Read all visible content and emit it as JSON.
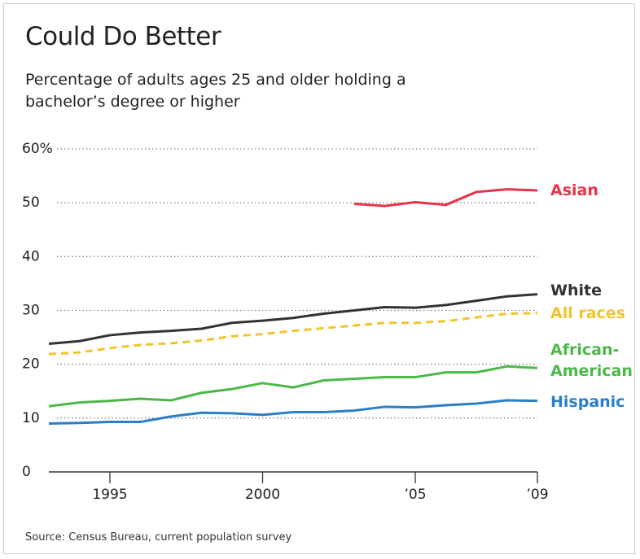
{
  "chart_data": {
    "type": "line",
    "title": "Could Do Better",
    "subtitle": "Percentage of adults ages 25 and older holding a bachelor’s degree or higher",
    "source": "Source: Census Bureau, current population survey",
    "x": [
      1993,
      1994,
      1995,
      1996,
      1997,
      1998,
      1999,
      2000,
      2001,
      2002,
      2003,
      2004,
      2005,
      2006,
      2007,
      2008,
      2009
    ],
    "xlim": [
      1993,
      2009
    ],
    "xticks": [
      1995,
      2000,
      {
        "value": 2005,
        "label": "’05"
      },
      {
        "value": 2009,
        "label": "’09"
      }
    ],
    "ylim": [
      0,
      60
    ],
    "yticks": [
      0,
      10,
      20,
      30,
      40,
      50,
      {
        "value": 60,
        "label": "60%"
      }
    ],
    "grid": true,
    "series": [
      {
        "name": "Asian",
        "color": "#e8334a",
        "style": "solid",
        "values": [
          null,
          null,
          null,
          null,
          null,
          null,
          null,
          null,
          null,
          null,
          49.8,
          49.4,
          50.1,
          49.6,
          52.0,
          52.5,
          52.3
        ]
      },
      {
        "name": "White",
        "color": "#333333",
        "style": "solid",
        "values": [
          23.8,
          24.3,
          25.4,
          25.9,
          26.2,
          26.6,
          27.7,
          28.1,
          28.6,
          29.4,
          30.0,
          30.6,
          30.5,
          31.0,
          31.8,
          32.6,
          33.0
        ]
      },
      {
        "name": "All races",
        "color": "#f2c42c",
        "style": "dashed",
        "values": [
          21.9,
          22.2,
          23.0,
          23.6,
          23.9,
          24.4,
          25.2,
          25.6,
          26.2,
          26.7,
          27.2,
          27.7,
          27.7,
          28.0,
          28.7,
          29.4,
          29.5
        ]
      },
      {
        "name": "African-American",
        "color": "#4cb849",
        "style": "solid",
        "values": [
          12.2,
          12.9,
          13.2,
          13.6,
          13.3,
          14.7,
          15.4,
          16.5,
          15.7,
          17.0,
          17.3,
          17.6,
          17.6,
          18.5,
          18.5,
          19.6,
          19.3
        ]
      },
      {
        "name": "Hispanic",
        "color": "#2a7fc8",
        "style": "solid",
        "values": [
          9.0,
          9.1,
          9.3,
          9.3,
          10.3,
          11.0,
          10.9,
          10.6,
          11.1,
          11.1,
          11.4,
          12.1,
          12.0,
          12.4,
          12.7,
          13.3,
          13.2
        ]
      }
    ]
  }
}
